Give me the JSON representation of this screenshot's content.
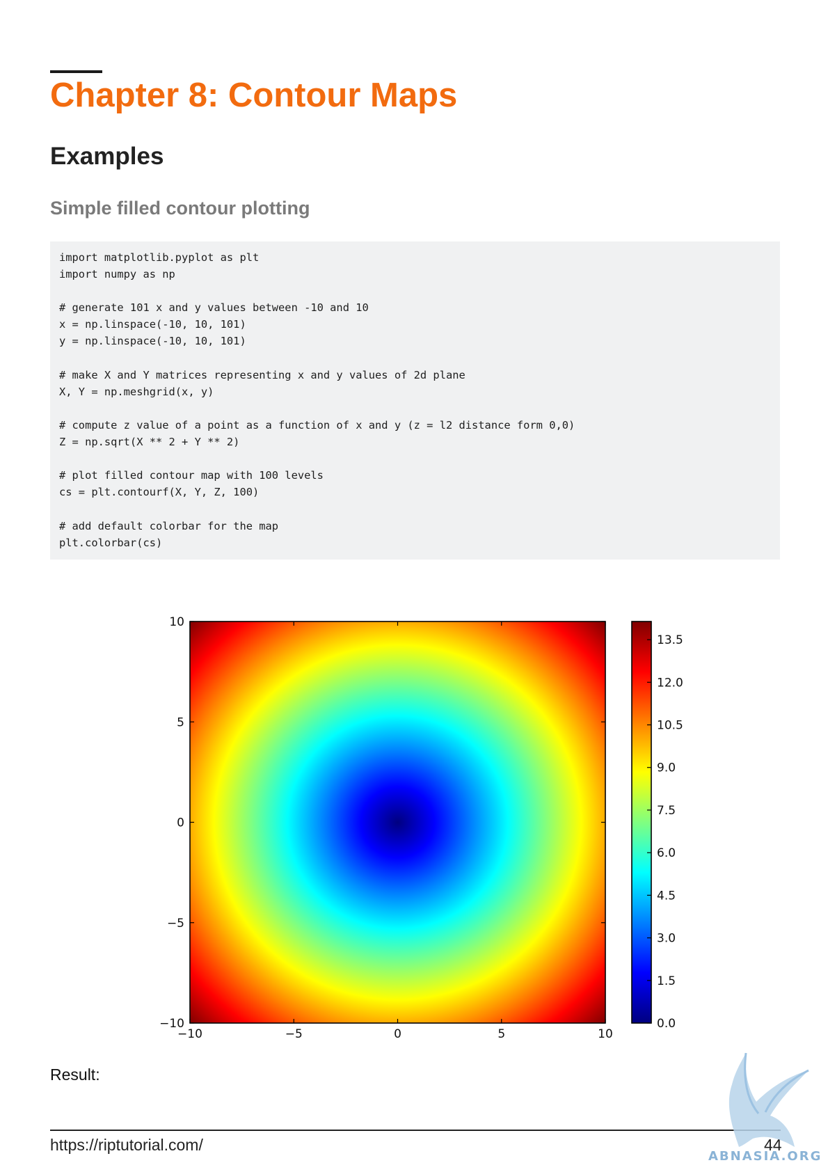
{
  "chapter": {
    "title": "Chapter 8: Contour Maps"
  },
  "section": {
    "title": "Examples"
  },
  "subsection": {
    "title": "Simple filled contour plotting"
  },
  "code": {
    "lines": [
      "import matplotlib.pyplot as plt",
      "import numpy as np",
      "",
      "# generate 101 x and y values between -10 and 10",
      "x = np.linspace(-10, 10, 101)",
      "y = np.linspace(-10, 10, 101)",
      "",
      "# make X and Y matrices representing x and y values of 2d plane",
      "X, Y = np.meshgrid(x, y)",
      "",
      "# compute z value of a point as a function of x and y (z = l2 distance form 0,0)",
      "Z = np.sqrt(X ** 2 + Y ** 2)",
      "",
      "# plot filled contour map with 100 levels",
      "cs = plt.contourf(X, Y, Z, 100)",
      "",
      "# add default colorbar for the map",
      "plt.colorbar(cs)"
    ]
  },
  "chart_data": {
    "type": "heatmap",
    "function": "z = sqrt(x^2 + y^2)",
    "xlim": [
      -10,
      10
    ],
    "ylim": [
      -10,
      10
    ],
    "x_ticks": [
      "−10",
      "−5",
      "0",
      "5",
      "10"
    ],
    "y_ticks": [
      "−10",
      "−5",
      "0",
      "5",
      "10"
    ],
    "colormap": "jet",
    "colorbar_range": [
      0.0,
      14.14
    ],
    "colorbar_ticks": [
      {
        "value": 0.0,
        "label": "0.0"
      },
      {
        "value": 1.5,
        "label": "1.5"
      },
      {
        "value": 3.0,
        "label": "3.0"
      },
      {
        "value": 4.5,
        "label": "4.5"
      },
      {
        "value": 6.0,
        "label": "6.0"
      },
      {
        "value": 7.5,
        "label": "7.5"
      },
      {
        "value": 9.0,
        "label": "9.0"
      },
      {
        "value": 10.5,
        "label": "10.5"
      },
      {
        "value": 12.0,
        "label": "12.0"
      },
      {
        "value": 13.5,
        "label": "13.5"
      }
    ],
    "legend": "colorbar right",
    "grid": false
  },
  "result": {
    "label": "Result:"
  },
  "footer": {
    "url": "https://riptutorial.com/",
    "page": "44"
  },
  "watermark": {
    "text": "ABNASIA.ORG"
  }
}
